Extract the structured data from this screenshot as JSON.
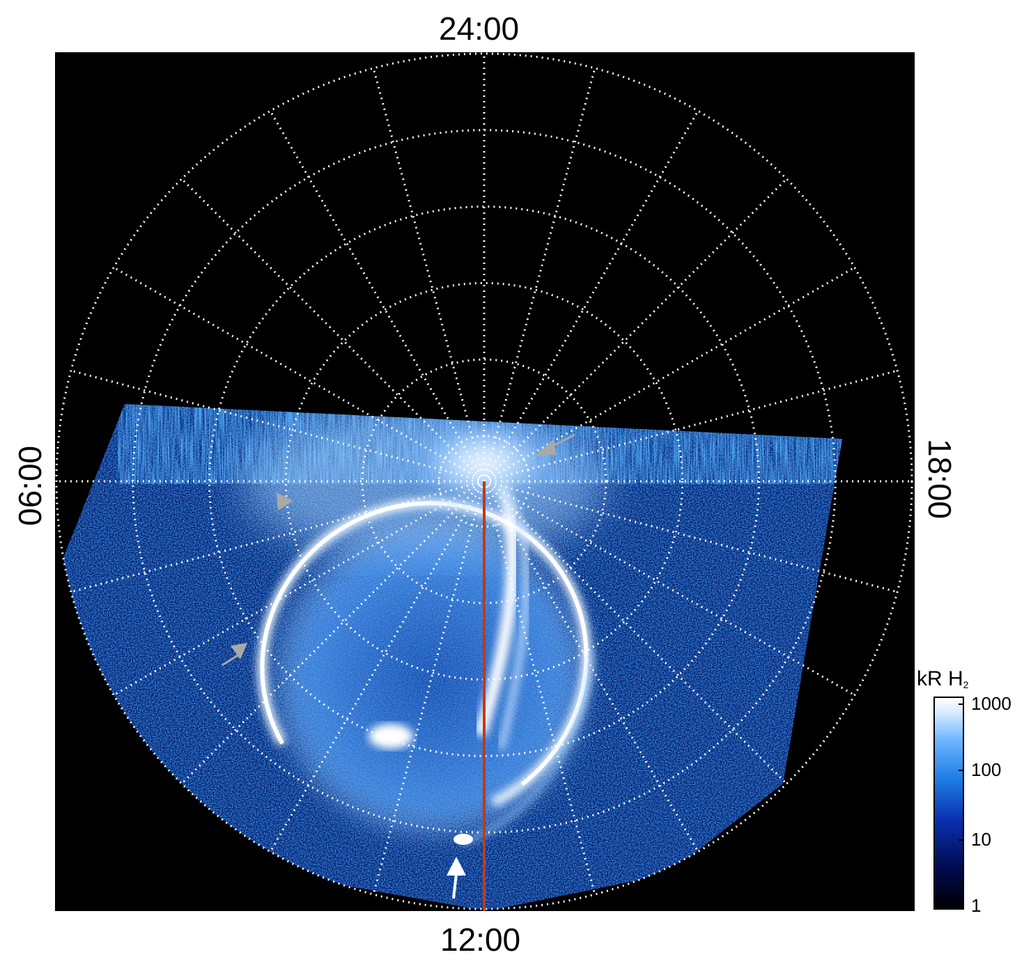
{
  "labels": {
    "top": "24:00",
    "bottom": "12:00",
    "left": "06:00",
    "right": "18:00"
  },
  "colorbar": {
    "unit_main": "kR H",
    "unit_sub": "2",
    "ticks": [
      "1000",
      "100",
      "10",
      "1"
    ]
  },
  "colors": {
    "background": "#000000",
    "grid": "#ffffff",
    "meridian_line": "#c0391b",
    "aurora_bright": "#ffffff",
    "aurora_mid": "#3a8cf0",
    "aurora_dim": "#0a2fb0",
    "arrow_gray": "#a9a9a9",
    "arrow_white": "#ffffff"
  },
  "grid": {
    "parallels": 5,
    "meridians": 24
  }
}
